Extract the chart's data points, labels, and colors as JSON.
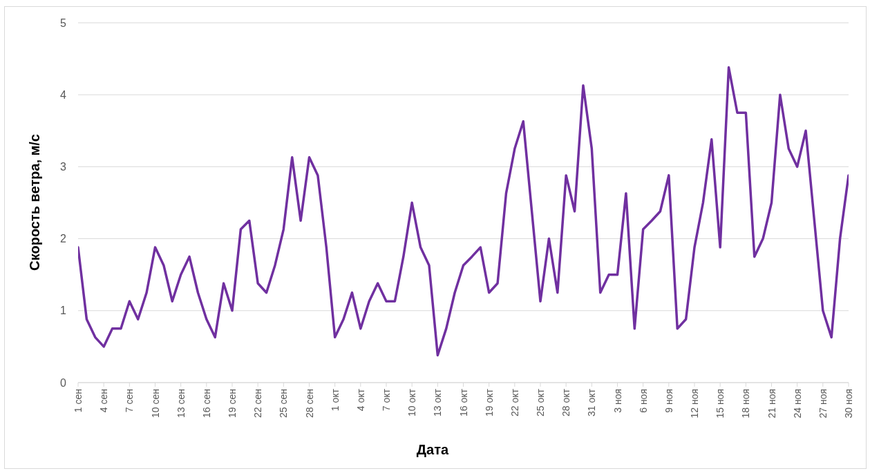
{
  "chart_data": {
    "type": "line",
    "xlabel": "Дата",
    "ylabel": "Скорость ветра, м/с",
    "categories": [
      "1 сен",
      null,
      null,
      "4 сен",
      null,
      null,
      "7 сен",
      null,
      null,
      "10 сен",
      null,
      null,
      "13 сен",
      null,
      null,
      "16 сен",
      null,
      null,
      "19 сен",
      null,
      null,
      "22 сен",
      null,
      null,
      "25 сен",
      null,
      null,
      "28 сен",
      null,
      null,
      "1 окт",
      null,
      null,
      "4 окт",
      null,
      null,
      "7 окт",
      null,
      null,
      "10 окт",
      null,
      null,
      "13 окт",
      null,
      null,
      "16 окт",
      null,
      null,
      "19 окт",
      null,
      null,
      "22 окт",
      null,
      null,
      "25 окт",
      null,
      null,
      "28 окт",
      null,
      null,
      "31 окт",
      null,
      null,
      "3 ноя",
      null,
      null,
      "6 ноя",
      null,
      null,
      "9 ноя",
      null,
      null,
      "12 ноя",
      null,
      null,
      "15 ноя",
      null,
      null,
      "18 ноя",
      null,
      null,
      "21 ноя",
      null,
      null,
      "24 ноя",
      null,
      null,
      "27 ноя",
      null,
      null,
      "30 ноя"
    ],
    "series": [
      {
        "color": "#7030a0",
        "values": [
          1.88,
          0.88,
          0.63,
          0.5,
          0.75,
          0.75,
          1.13,
          0.88,
          1.25,
          1.88,
          1.63,
          1.13,
          1.5,
          1.75,
          1.25,
          0.88,
          0.63,
          1.38,
          1.0,
          2.13,
          2.25,
          1.38,
          1.25,
          1.63,
          2.13,
          3.13,
          2.25,
          3.13,
          2.88,
          1.88,
          0.63,
          0.88,
          1.25,
          0.75,
          1.13,
          1.38,
          1.13,
          1.13,
          1.75,
          2.5,
          1.88,
          1.63,
          0.38,
          0.75,
          1.25,
          1.63,
          1.75,
          1.88,
          1.25,
          1.38,
          2.63,
          3.25,
          3.63,
          2.38,
          1.13,
          2.0,
          1.25,
          2.88,
          2.38,
          4.13,
          3.25,
          1.25,
          1.5,
          1.5,
          2.63,
          0.75,
          2.13,
          2.25,
          2.38,
          2.88,
          0.75,
          0.88,
          1.88,
          2.5,
          3.38,
          1.88,
          4.38,
          3.75,
          3.75,
          1.75,
          2.0,
          2.5,
          4.0,
          3.25,
          3.0,
          3.5,
          2.25,
          1.0,
          0.63,
          2.0,
          2.88
        ]
      }
    ],
    "ylim": [
      0,
      5
    ],
    "yticks": [
      0,
      1,
      2,
      3,
      4,
      5
    ],
    "grid": "y",
    "marker": "none",
    "line_style": "solid"
  }
}
